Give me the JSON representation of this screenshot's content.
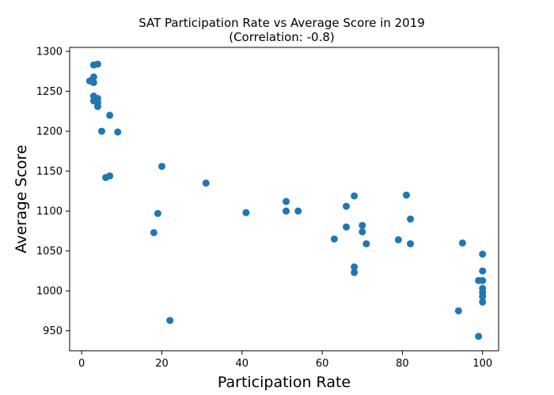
{
  "chart_data": {
    "type": "scatter",
    "title": "SAT Participation Rate vs Average Score in 2019",
    "subtitle": "(Correlation: -0.8)",
    "xlabel": "Participation Rate",
    "ylabel": "Average Score",
    "xlim": [
      -3,
      104
    ],
    "ylim": [
      925,
      1305
    ],
    "xticks": [
      0,
      20,
      40,
      60,
      80,
      100
    ],
    "yticks": [
      950,
      1000,
      1050,
      1100,
      1150,
      1200,
      1250,
      1300
    ],
    "grid": false,
    "color": "#1f77b4",
    "points": [
      {
        "x": 2,
        "y": 1263
      },
      {
        "x": 3,
        "y": 1283
      },
      {
        "x": 4,
        "y": 1284
      },
      {
        "x": 3,
        "y": 1268
      },
      {
        "x": 3,
        "y": 1261
      },
      {
        "x": 3,
        "y": 1244
      },
      {
        "x": 4,
        "y": 1241
      },
      {
        "x": 3,
        "y": 1238
      },
      {
        "x": 4,
        "y": 1236
      },
      {
        "x": 4,
        "y": 1231
      },
      {
        "x": 7,
        "y": 1220
      },
      {
        "x": 5,
        "y": 1200
      },
      {
        "x": 9,
        "y": 1199
      },
      {
        "x": 6,
        "y": 1142
      },
      {
        "x": 7,
        "y": 1144
      },
      {
        "x": 20,
        "y": 1156
      },
      {
        "x": 31,
        "y": 1135
      },
      {
        "x": 19,
        "y": 1097
      },
      {
        "x": 18,
        "y": 1073
      },
      {
        "x": 22,
        "y": 963
      },
      {
        "x": 41,
        "y": 1098
      },
      {
        "x": 51,
        "y": 1112
      },
      {
        "x": 51,
        "y": 1100
      },
      {
        "x": 54,
        "y": 1100
      },
      {
        "x": 63,
        "y": 1065
      },
      {
        "x": 66,
        "y": 1106
      },
      {
        "x": 66,
        "y": 1080
      },
      {
        "x": 68,
        "y": 1119
      },
      {
        "x": 68,
        "y": 1030
      },
      {
        "x": 68,
        "y": 1023
      },
      {
        "x": 70,
        "y": 1082
      },
      {
        "x": 70,
        "y": 1074
      },
      {
        "x": 71,
        "y": 1059
      },
      {
        "x": 79,
        "y": 1064
      },
      {
        "x": 81,
        "y": 1120
      },
      {
        "x": 82,
        "y": 1090
      },
      {
        "x": 82,
        "y": 1059
      },
      {
        "x": 95,
        "y": 1060
      },
      {
        "x": 94,
        "y": 975
      },
      {
        "x": 99,
        "y": 943
      },
      {
        "x": 99,
        "y": 1013
      },
      {
        "x": 100,
        "y": 1046
      },
      {
        "x": 100,
        "y": 1025
      },
      {
        "x": 100,
        "y": 1013
      },
      {
        "x": 100,
        "y": 1003
      },
      {
        "x": 100,
        "y": 998
      },
      {
        "x": 100,
        "y": 993
      },
      {
        "x": 100,
        "y": 986
      }
    ]
  }
}
